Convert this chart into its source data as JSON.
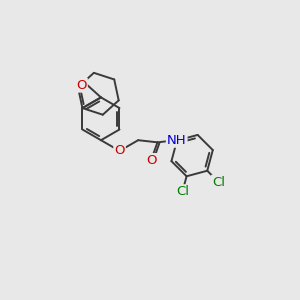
{
  "background_color": "#e8e8e8",
  "bond_color": "#3a3a3a",
  "O_color": "#cc0000",
  "N_color": "#0000cc",
  "Cl_color": "#008000",
  "H_color": "#808080",
  "line_width": 1.4,
  "font_size": 9.5,
  "figsize": [
    3.0,
    3.0
  ],
  "dpi": 100,
  "xlim": [
    0,
    10
  ],
  "ylim": [
    0,
    10
  ]
}
